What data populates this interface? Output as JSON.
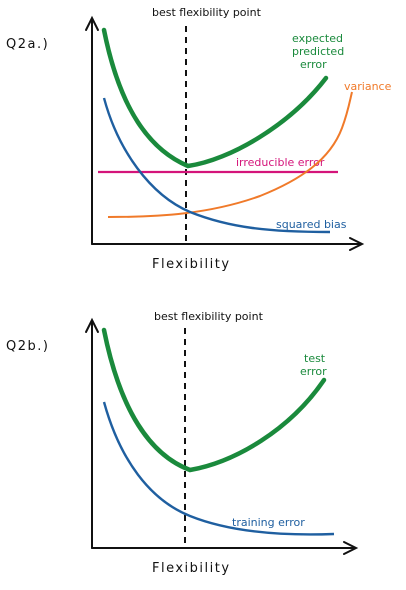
{
  "colors": {
    "axis": "#111111",
    "test_error": "#1a8a3c",
    "variance": "#f07a2a",
    "irreducible": "#d4147a",
    "bias": "#1f5fa0"
  },
  "panel_a": {
    "label": "Q2a.)",
    "best_point_label": "best flexibility point",
    "x_axis_label": "Flexibility",
    "curves": {
      "expected_error_line1": "expected",
      "expected_error_line2": "predicted",
      "expected_error_line3": "error",
      "variance": "variance",
      "irreducible": "irreducible error",
      "squared_bias": "squared bias"
    }
  },
  "panel_b": {
    "label": "Q2b.)",
    "best_point_label": "best flexibility point",
    "x_axis_label": "Flexibility",
    "curves": {
      "test_error_line1": "test",
      "test_error_line2": "error",
      "training_error": "training error"
    }
  }
}
